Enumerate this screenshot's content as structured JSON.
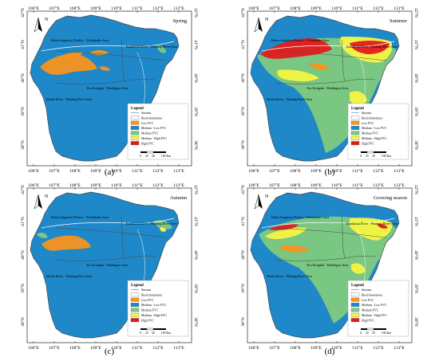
{
  "colors": {
    "low": "#f7941d",
    "medium_low": "#1e88c8",
    "medium": "#7fc97f",
    "medium_high": "#f5f542",
    "high": "#e31a1c",
    "boundary": "#4a4a4a",
    "stream": "#ffffff"
  },
  "axes": {
    "top_ticks": [
      "106°E",
      "107°E",
      "108°E",
      "109°E",
      "110°E",
      "111°E",
      "112°E",
      "113°E"
    ],
    "bottom_ticks": [
      "106°E",
      "107°E",
      "108°E",
      "109°E",
      "110°E",
      "111°E",
      "112°E",
      "113°E"
    ],
    "left_ticks": [
      "42°N",
      "41°N",
      "40°N",
      "39°N",
      "38°N"
    ],
    "right_ticks": [
      "42°N",
      "41°N",
      "40°N",
      "39°N",
      "38°N"
    ]
  },
  "regions": {
    "hetao": "Hetao Irrigation District - Wulanbuhe Area",
    "kundulun": "Kundulun River - Wudang River Area",
    "tuo": "Tuo Kongdui - Hanlingou Area",
    "moshi": "Moshi River - Wuding River Area"
  },
  "legend": {
    "title": "Legend",
    "items": [
      "Streams",
      "Basin boundaries",
      "Low FVC",
      "Medium - Low FVC",
      "Medium FVC",
      "Medium - High FVC",
      "High FVC"
    ]
  },
  "scale": {
    "labels": [
      "0",
      "25",
      "50",
      "100 Km"
    ]
  },
  "north": "N",
  "panels": [
    {
      "caption": "(a)",
      "season": "Spring"
    },
    {
      "caption": "(b)",
      "season": "Summer"
    },
    {
      "caption": "(c)",
      "season": "Autumn"
    },
    {
      "caption": "(d)",
      "season": "Growing season"
    }
  ]
}
